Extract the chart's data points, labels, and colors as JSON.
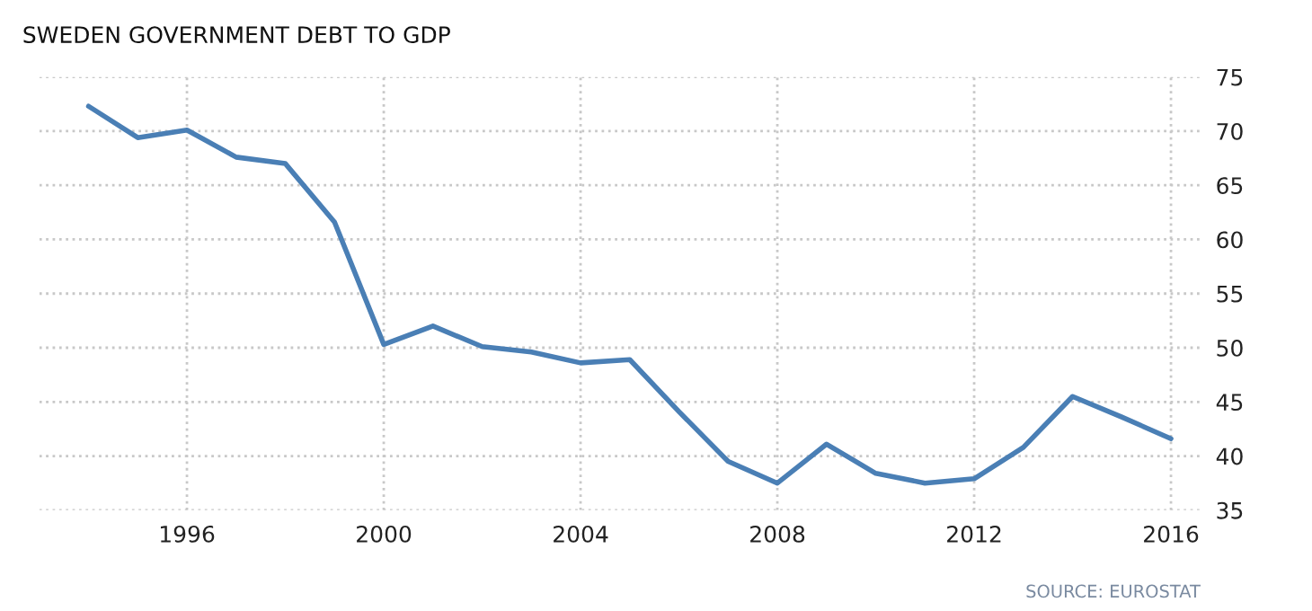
{
  "chart_data": {
    "type": "line",
    "title": "SWEDEN GOVERNMENT DEBT TO GDP",
    "x": [
      1994,
      1995,
      1996,
      1997,
      1998,
      1999,
      2000,
      2001,
      2002,
      2003,
      2004,
      2005,
      2006,
      2007,
      2008,
      2009,
      2010,
      2011,
      2012,
      2013,
      2014,
      2015,
      2016
    ],
    "series": [
      {
        "color": "#4a7fb5",
        "values": [
          72.3,
          69.4,
          70.1,
          67.6,
          67.0,
          61.6,
          50.3,
          52.0,
          50.1,
          49.6,
          48.6,
          48.9,
          44.1,
          39.5,
          37.5,
          41.1,
          38.4,
          37.5,
          37.9,
          40.8,
          45.5,
          43.6,
          41.6
        ]
      }
    ],
    "xlim": [
      1993,
      2016.6
    ],
    "xticks": [
      1996,
      2000,
      2004,
      2008,
      2012,
      2016
    ],
    "ylim": [
      35,
      75
    ],
    "yticks": [
      35,
      40,
      45,
      50,
      55,
      60,
      65,
      70,
      75
    ],
    "grid": true,
    "line_style": "solid",
    "marker": "none",
    "annotations": [
      "SOURCE: EUROSTAT"
    ]
  }
}
